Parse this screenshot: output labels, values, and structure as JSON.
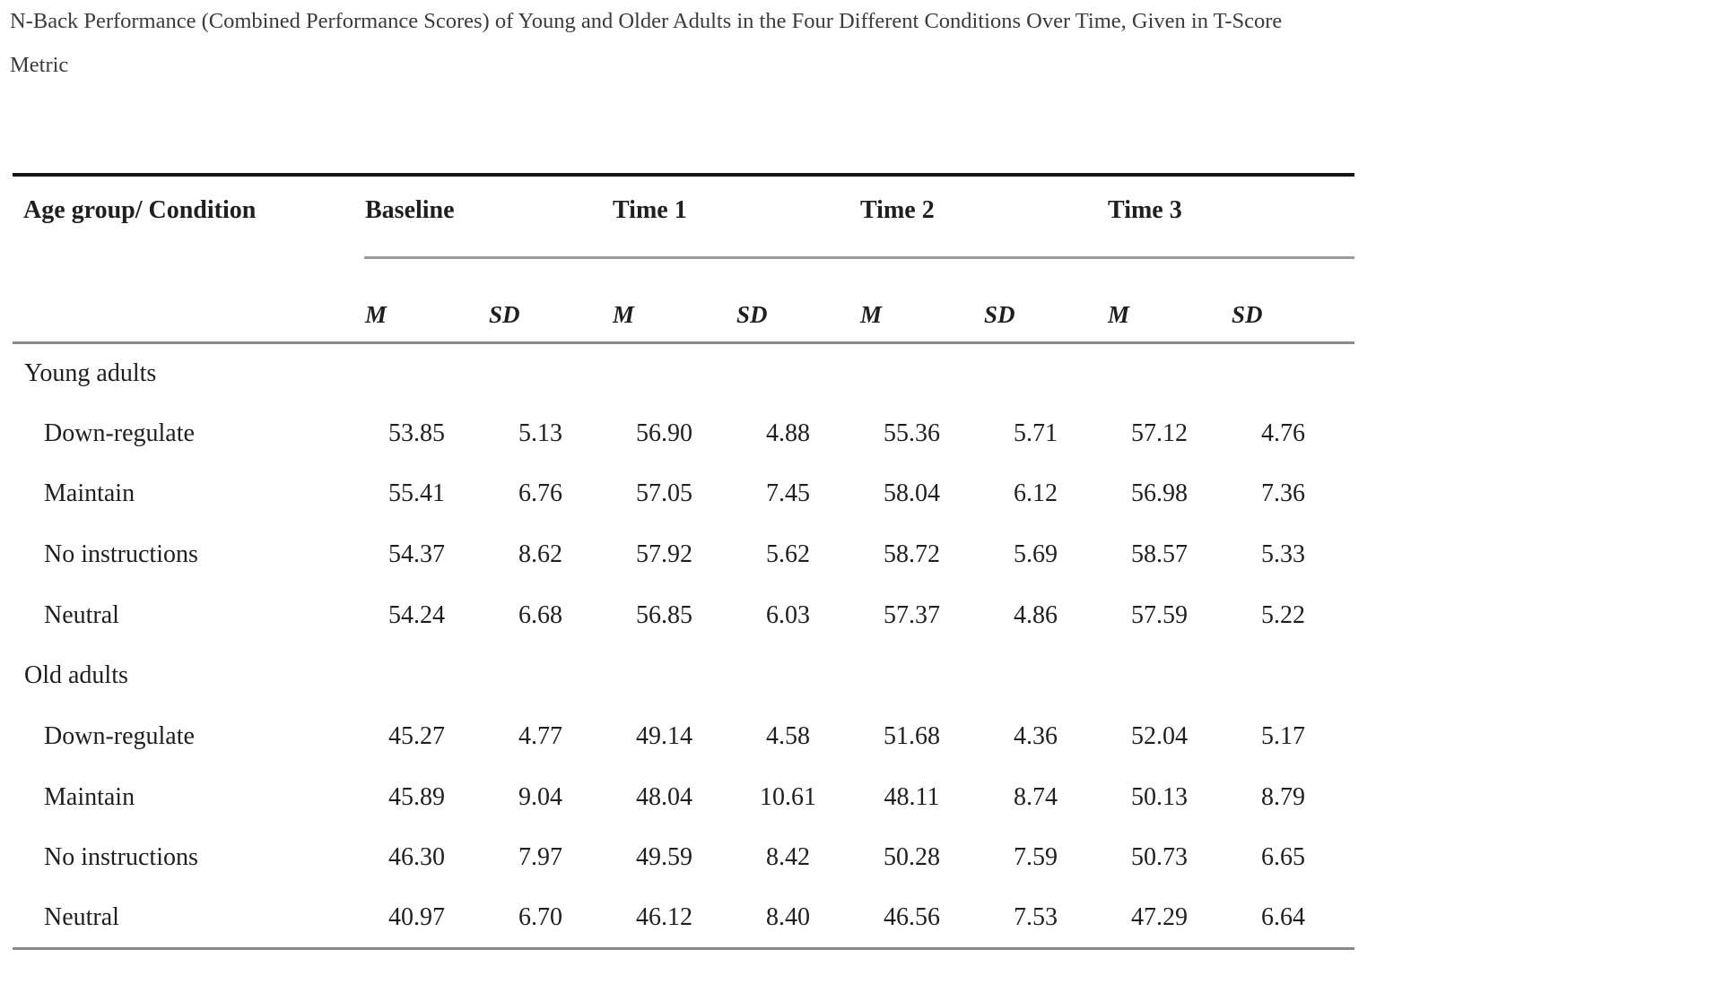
{
  "title": {
    "line1": "N-Back Performance (Combined Performance Scores) of Young and Older Adults in the Four Different Conditions Over Time, Given in T-Score",
    "line2": "Metric"
  },
  "table": {
    "header": {
      "col1": "Age group/ Condition",
      "groups": [
        "Baseline",
        "Time 1",
        "Time 2",
        "Time 3"
      ],
      "subheaders": [
        "M",
        "SD"
      ]
    },
    "sections": [
      {
        "label": "Young adults",
        "rows": [
          {
            "condition": "Down-regulate",
            "values": [
              "53.85",
              "5.13",
              "56.90",
              "4.88",
              "55.36",
              "5.71",
              "57.12",
              "4.76"
            ]
          },
          {
            "condition": "Maintain",
            "values": [
              "55.41",
              "6.76",
              "57.05",
              "7.45",
              "58.04",
              "6.12",
              "56.98",
              "7.36"
            ]
          },
          {
            "condition": "No instructions",
            "values": [
              "54.37",
              "8.62",
              "57.92",
              "5.62",
              "58.72",
              "5.69",
              "58.57",
              "5.33"
            ]
          },
          {
            "condition": "Neutral",
            "values": [
              "54.24",
              "6.68",
              "56.85",
              "6.03",
              "57.37",
              "4.86",
              "57.59",
              "5.22"
            ]
          }
        ]
      },
      {
        "label": "Old adults",
        "rows": [
          {
            "condition": "Down-regulate",
            "values": [
              "45.27",
              "4.77",
              "49.14",
              "4.58",
              "51.68",
              "4.36",
              "52.04",
              "5.17"
            ]
          },
          {
            "condition": "Maintain",
            "values": [
              "45.89",
              "9.04",
              "48.04",
              "10.61",
              "48.11",
              "8.74",
              "50.13",
              "8.79"
            ]
          },
          {
            "condition": "No instructions",
            "values": [
              "46.30",
              "7.97",
              "49.59",
              "8.42",
              "50.28",
              "7.59",
              "50.73",
              "6.65"
            ]
          },
          {
            "condition": "Neutral",
            "values": [
              "40.97",
              "6.70",
              "46.12",
              "8.40",
              "46.56",
              "7.53",
              "47.29",
              "6.64"
            ]
          }
        ]
      }
    ]
  },
  "colors": {
    "background": "#ffffff",
    "text": "#1f1f1f",
    "title_text": "#3b3b3b",
    "rule_top": "#161616",
    "rule_gray": "#8a8a8a"
  }
}
